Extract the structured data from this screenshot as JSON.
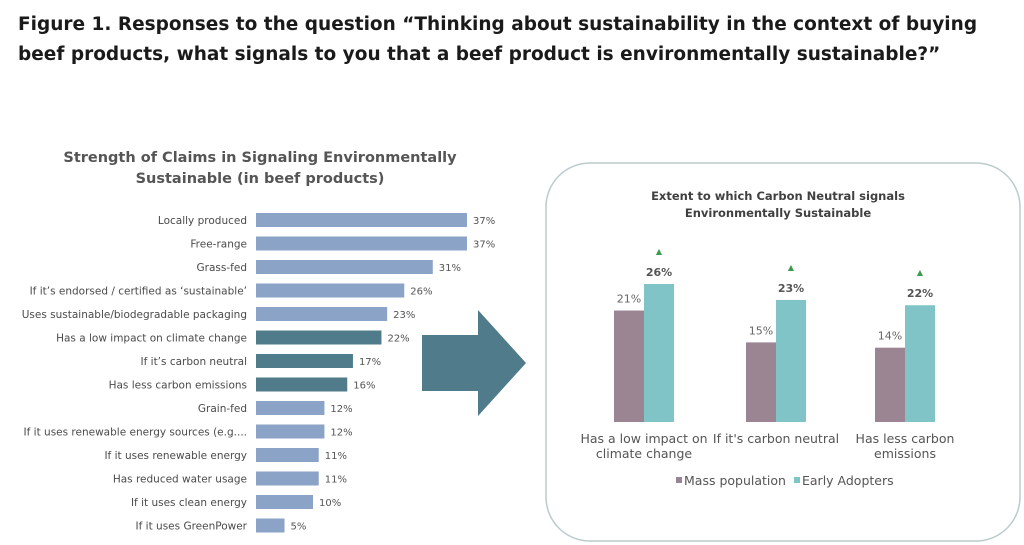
{
  "figure_title": "Figure 1. Responses to the question “Thinking about sustainability in the context of buying beef products, what signals to you that a beef product is environmentally sustainable?”",
  "colors": {
    "bar_light": "#8ba3c7",
    "bar_dark": "#4f7b8a",
    "arrow": "#4f7b8a",
    "mass": "#9b8593",
    "early": "#80c4c7",
    "indicator": "#3d9b4d"
  },
  "chart_data": [
    {
      "type": "bar",
      "orientation": "horizontal",
      "title_lines": [
        "Strength of Claims in Signaling Environmentally",
        "Sustainable (in beef products)"
      ],
      "categories": [
        "Locally produced",
        "Free-range",
        "Grass-fed",
        "If it’s endorsed / certified as ‘sustainable’",
        "Uses sustainable/biodegradable packaging",
        "Has a low impact on climate change",
        "If it’s carbon neutral",
        "Has less carbon emissions",
        "Grain-fed",
        "If it uses renewable energy sources (e.g....",
        "If it uses renewable energy",
        "Has reduced water usage",
        "If it uses clean energy",
        "If it uses GreenPower"
      ],
      "values": [
        37,
        37,
        31,
        26,
        23,
        22,
        17,
        16,
        12,
        12,
        11,
        11,
        10,
        5
      ],
      "value_labels": [
        "37%",
        "37%",
        "31%",
        "26%",
        "23%",
        "22%",
        "17%",
        "16%",
        "12%",
        "12%",
        "11%",
        "11%",
        "10%",
        "5%"
      ],
      "highlighted": [
        false,
        false,
        false,
        false,
        false,
        true,
        true,
        true,
        false,
        false,
        false,
        false,
        false,
        false
      ],
      "xlim": [
        0,
        37
      ]
    },
    {
      "type": "bar",
      "title_lines": [
        "Extent to which Carbon Neutral signals",
        "Environmentally Sustainable"
      ],
      "categories": [
        [
          "Has a low impact on",
          "climate change"
        ],
        [
          "If it's carbon neutral"
        ],
        [
          "Has less carbon",
          "emissions"
        ]
      ],
      "series": [
        {
          "name": "Mass population",
          "values": [
            21,
            15,
            14
          ],
          "labels": [
            "21%",
            "15%",
            "14%"
          ]
        },
        {
          "name": "Early Adopters",
          "values": [
            26,
            23,
            22
          ],
          "labels": [
            "26%",
            "23%",
            "22%"
          ]
        }
      ],
      "indicators": [
        "▲",
        "▲",
        "▲"
      ],
      "legend_position": "bottom",
      "ylim": [
        0,
        26
      ]
    }
  ]
}
